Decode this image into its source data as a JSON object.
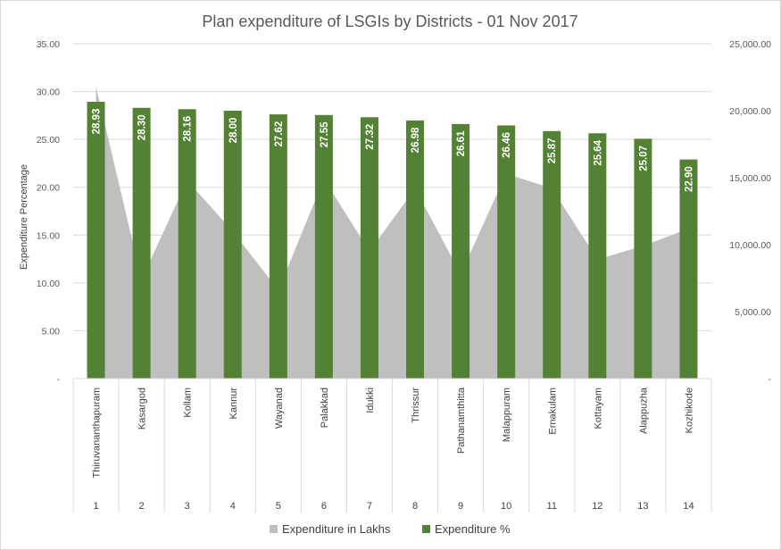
{
  "chart_data": {
    "type": "bar",
    "title": "Plan expenditure of LSGIs by Districts - 01 Nov 2017",
    "ylabel": "Expenditure Percentage",
    "ylim": [
      0,
      35
    ],
    "y_ticks": [
      "-",
      "5.00",
      "10.00",
      "15.00",
      "20.00",
      "25.00",
      "30.00",
      "35.00"
    ],
    "y2lim": [
      0,
      25000
    ],
    "y2_ticks": [
      "-",
      "5,000.00",
      "10,000.00",
      "15,000.00",
      "20,000.00",
      "25,000.00"
    ],
    "categories": [
      "Thiruvananthapuram",
      "Kasargod",
      "Kollam",
      "Kannur",
      "Wayanad",
      "Palakkad",
      "Idukki",
      "Thrissur",
      "Pathanamthitta",
      "Malappuram",
      "Ernakulam",
      "Kottayam",
      "Alappuzha",
      "Kozhikode"
    ],
    "indices": [
      "1",
      "2",
      "3",
      "4",
      "5",
      "6",
      "7",
      "8",
      "9",
      "10",
      "11",
      "12",
      "13",
      "14"
    ],
    "series": [
      {
        "name": "Expenditure in Lakhs",
        "type": "area",
        "axis": "secondary",
        "color": "#bfbfbf",
        "values": [
          21800,
          7400,
          14800,
          11000,
          6600,
          14900,
          9500,
          14200,
          7800,
          15300,
          14200,
          8900,
          9900,
          11200
        ]
      },
      {
        "name": "Expenditure %",
        "type": "bar",
        "axis": "primary",
        "color": "#548235",
        "values": [
          28.93,
          28.3,
          28.16,
          28.0,
          27.62,
          27.55,
          27.32,
          26.98,
          26.61,
          26.46,
          25.87,
          25.64,
          25.07,
          22.9
        ],
        "labels": [
          "28.93",
          "28.30",
          "28.16",
          "28.00",
          "27.62",
          "27.55",
          "27.32",
          "26.98",
          "26.61",
          "26.46",
          "25.87",
          "25.64",
          "25.07",
          "22.90"
        ]
      }
    ],
    "legend_position": "bottom",
    "grid": true
  }
}
